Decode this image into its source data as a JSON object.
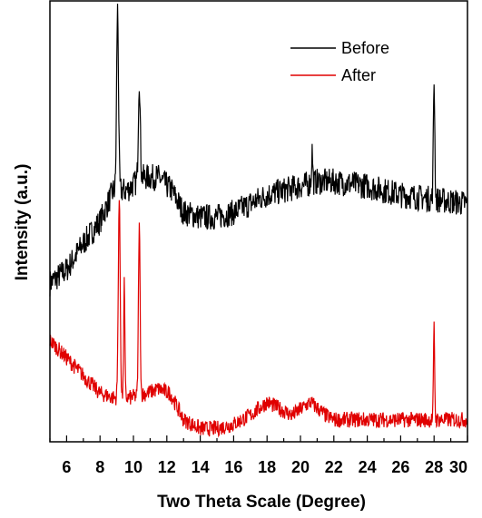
{
  "chart_data": {
    "type": "line",
    "title": "",
    "xlabel": "Two Theta Scale (Degree)",
    "ylabel": "Intensity (a.u.)",
    "xlim": [
      5,
      30
    ],
    "ylim": [
      0,
      1
    ],
    "x_ticks": [
      6,
      8,
      10,
      12,
      14,
      16,
      18,
      20,
      22,
      24,
      26,
      28,
      30
    ],
    "y_tick_labels": false,
    "grid": false,
    "legend": {
      "position": "top-right",
      "entries": [
        "Before",
        "After"
      ]
    },
    "series": [
      {
        "name": "Before",
        "color": "#000000",
        "noise_amplitude": 0.03,
        "baseline": [
          [
            5,
            0.36
          ],
          [
            6,
            0.39
          ],
          [
            7,
            0.45
          ],
          [
            8,
            0.5
          ],
          [
            8.8,
            0.57
          ],
          [
            9.6,
            0.57
          ],
          [
            10.5,
            0.6
          ],
          [
            11.5,
            0.6
          ],
          [
            12.3,
            0.57
          ],
          [
            13,
            0.52
          ],
          [
            14,
            0.51
          ],
          [
            15,
            0.51
          ],
          [
            16,
            0.52
          ],
          [
            17,
            0.54
          ],
          [
            18,
            0.56
          ],
          [
            19,
            0.57
          ],
          [
            20,
            0.58
          ],
          [
            21,
            0.59
          ],
          [
            22,
            0.59
          ],
          [
            24,
            0.58
          ],
          [
            26,
            0.56
          ],
          [
            28,
            0.55
          ],
          [
            30,
            0.54
          ]
        ],
        "peaks": [
          [
            9.05,
            0.98,
            0.08
          ],
          [
            10.35,
            0.82,
            0.08
          ],
          [
            20.7,
            0.66,
            0.05
          ],
          [
            28.0,
            0.82,
            0.06
          ]
        ]
      },
      {
        "name": "After",
        "color": "#e00000",
        "noise_amplitude": 0.018,
        "baseline": [
          [
            5,
            0.23
          ],
          [
            6,
            0.19
          ],
          [
            7,
            0.15
          ],
          [
            8,
            0.11
          ],
          [
            8.8,
            0.1
          ],
          [
            9.8,
            0.1
          ],
          [
            10.8,
            0.11
          ],
          [
            11.5,
            0.12
          ],
          [
            12.2,
            0.11
          ],
          [
            13,
            0.05
          ],
          [
            14,
            0.03
          ],
          [
            15,
            0.03
          ],
          [
            16,
            0.04
          ],
          [
            17,
            0.06
          ],
          [
            18,
            0.09
          ],
          [
            18.5,
            0.08
          ],
          [
            19.5,
            0.06
          ],
          [
            20.6,
            0.09
          ],
          [
            21.5,
            0.06
          ],
          [
            22,
            0.05
          ],
          [
            24,
            0.05
          ],
          [
            26,
            0.05
          ],
          [
            28,
            0.05
          ],
          [
            30,
            0.05
          ]
        ],
        "peaks": [
          [
            9.15,
            0.55,
            0.08
          ],
          [
            9.45,
            0.36,
            0.05
          ],
          [
            10.35,
            0.49,
            0.07
          ],
          [
            28.0,
            0.26,
            0.05
          ]
        ]
      }
    ]
  }
}
